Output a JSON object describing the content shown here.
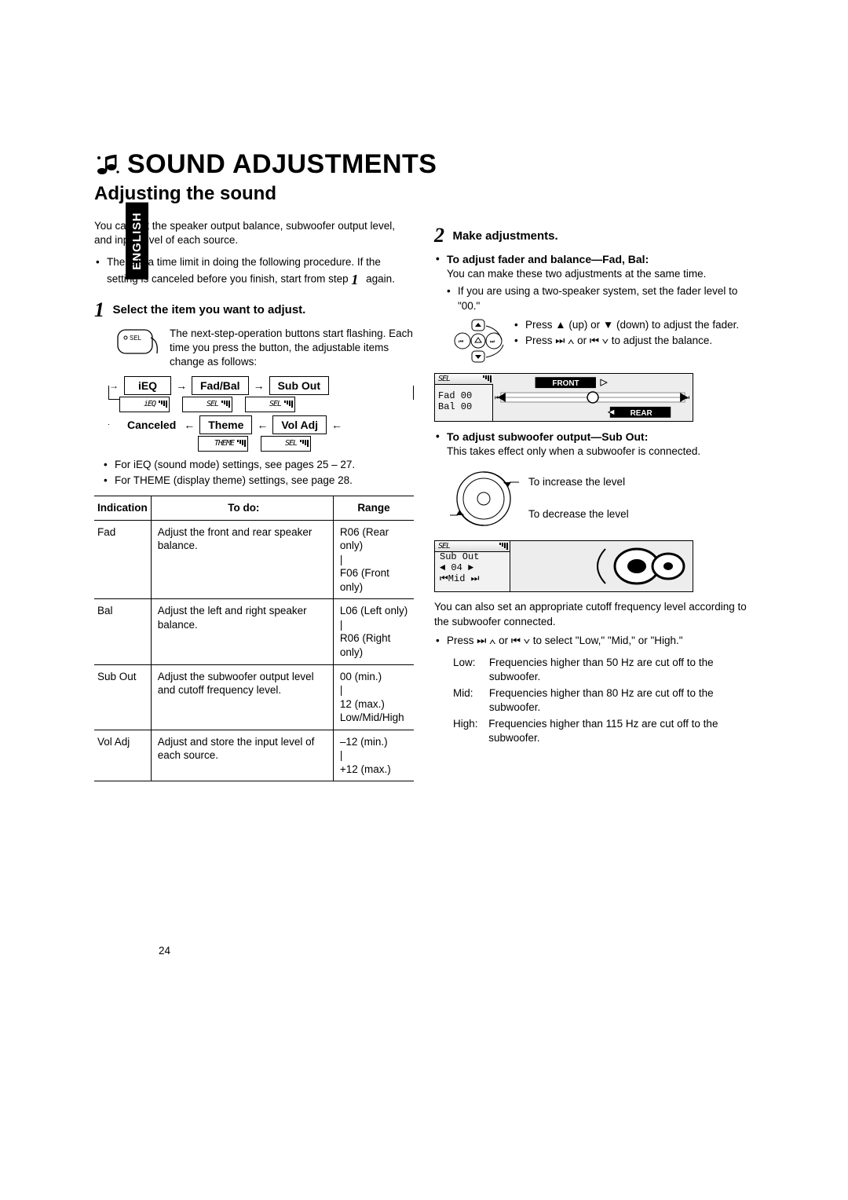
{
  "lang_tab": "ENGLISH",
  "page_number": "24",
  "section_title": "SOUND ADJUSTMENTS",
  "subheading": "Adjusting the sound",
  "intro": "You can set the speaker output balance, subwoofer output level, and input level of each source.",
  "time_note_a": "There is a time limit in doing the following procedure. If the setting is canceled before you finish, start from step ",
  "time_note_step": "1",
  "time_note_b": " again.",
  "step1": {
    "num": "1",
    "title": "Select the item you want to adjust.",
    "desc": "The next-step-operation buttons start flashing. Each time you press the button, the adjustable items change as follows:"
  },
  "flow": {
    "ieq": "iEQ",
    "fadbal": "Fad/Bal",
    "subout": "Sub Out",
    "canceled": "Canceled",
    "theme": "Theme",
    "voladj": "Vol Adj",
    "strip_ieq": "iEQ",
    "strip_sel": "SEL",
    "strip_theme": "THEME"
  },
  "notes": {
    "n1": "For iEQ (sound mode) settings, see pages 25 – 27.",
    "n2": "For THEME (display theme) settings, see page 28."
  },
  "table": {
    "h1": "Indication",
    "h2": "To do:",
    "h3": "Range",
    "rows": [
      {
        "c1": "Fad",
        "c2": "Adjust the front and rear speaker balance.",
        "c3": "R06 (Rear only)\n|\nF06 (Front only)"
      },
      {
        "c1": "Bal",
        "c2": "Adjust the left and right speaker balance.",
        "c3": "L06 (Left only)\n|\nR06 (Right only)"
      },
      {
        "c1": "Sub Out",
        "c2": "Adjust the subwoofer output level and cutoff frequency level.",
        "c3": "00 (min.)\n|\n12 (max.)\nLow/Mid/High"
      },
      {
        "c1": "Vol Adj",
        "c2": "Adjust and store the input level of each source.",
        "c3": "–12 (min.)\n|\n+12 (max.)"
      }
    ]
  },
  "step2": {
    "num": "2",
    "title": "Make adjustments.",
    "fadbal_title": "To adjust fader and balance—Fad, Bal:",
    "fadbal_text": "You can make these two adjustments at the same time.",
    "fadbal_sub": "If you are using a two-speaker system, set the fader level to \"00.\"",
    "dpad_a": "Press ▲ (up) or ▼ (down) to adjust the fader.",
    "dpad_b_pre": "Press ",
    "dpad_b_post": " to adjust the balance.",
    "disp1": {
      "sel": "SEL",
      "l1": "Fad   00",
      "l2": "Bal   00",
      "front": "FRONT",
      "rear": "REAR"
    },
    "subout_title": "To adjust subwoofer output—Sub Out:",
    "subout_text": "This takes effect only when a subwoofer is connected.",
    "dial_inc": "To increase the level",
    "dial_dec": "To decrease the level",
    "disp2": {
      "sel": "SEL",
      "l1": "Sub Out",
      "l2": "◄  04  ►",
      "l3": "⏮Mid ⏭"
    },
    "cutoff_para": "You can also set an appropriate cutoff frequency level according to the subwoofer connected.",
    "cutoff_select_pre": "Press ",
    "cutoff_select_post": " to select \"Low,\" \"Mid,\" or \"High.\"",
    "freq": {
      "low_lbl": "Low:",
      "low": "Frequencies higher than 50 Hz are cut off to the subwoofer.",
      "mid_lbl": "Mid:",
      "mid": "Frequencies higher than 80 Hz are cut off to the subwoofer.",
      "high_lbl": "High:",
      "high": "Frequencies higher than 115 Hz are cut off to the subwoofer."
    }
  }
}
